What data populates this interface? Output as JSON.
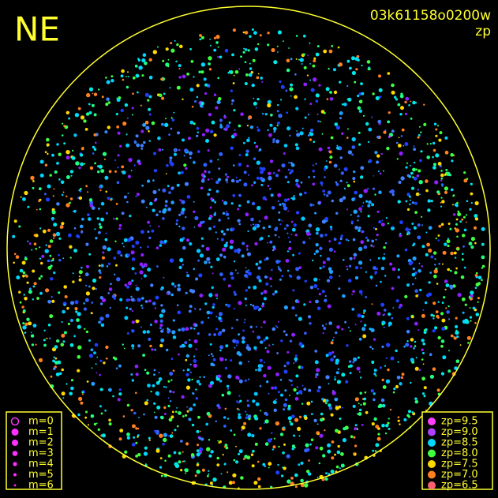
{
  "corner_label": "NE",
  "image_id": "03k61158o0200w",
  "color_key": "zp",
  "magnitude_legend": {
    "marker_color": "#ff30ff",
    "entries": [
      "m=0",
      "m=1",
      "m=2",
      "m=3",
      "m=4",
      "m=5",
      "m=6"
    ]
  },
  "zp_legend": {
    "entries": [
      {
        "label": "zp=9.5",
        "color": "#ff40ff"
      },
      {
        "label": "zp=9.0",
        "color": "#b040ff"
      },
      {
        "label": "zp=8.5",
        "color": "#00d8ff"
      },
      {
        "label": "zp=8.0",
        "color": "#40ff40"
      },
      {
        "label": "zp=7.5",
        "color": "#ffd800"
      },
      {
        "label": "zp=7.0",
        "color": "#ff8020"
      },
      {
        "label": "zp=6.5",
        "color": "#ff6070"
      }
    ]
  }
}
